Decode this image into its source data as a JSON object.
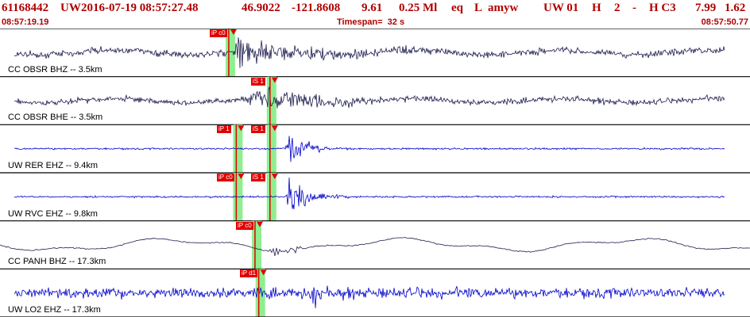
{
  "header": {
    "event_id": "61168442",
    "network": "UW",
    "origin_time": "2016-07-19 08:57:27.48",
    "latitude": "46.9022",
    "longitude": "-121.8608",
    "depth": "9.61",
    "magnitude": "0.25 Ml",
    "event_type": "eq",
    "flag": "L",
    "author": "amyw",
    "source": "UW 01",
    "quality": "H",
    "version": "2",
    "dash": "-",
    "extra": "H C3",
    "rms": "7.99",
    "gap": "1.62",
    "start_time": "08:57:19.19",
    "timespan": "Timespan=  32 s",
    "end_time": "08:57:50.77"
  },
  "traces": [
    {
      "label": "CC OBSR BHZ -- 3.5km",
      "color": "#1c1c4e",
      "amplitude": 0.6,
      "noise": 0.12,
      "onset": 0.31,
      "wave": "broadband",
      "picks": [
        {
          "label": "iP c0",
          "pos": 0.305
        }
      ]
    },
    {
      "label": "CC OBSR BHE -- 3.5km",
      "color": "#1c1c4e",
      "amplitude": 0.55,
      "noise": 0.1,
      "onset": 0.33,
      "wave": "broadband",
      "picks": [
        {
          "label": "iS 1",
          "pos": 0.36
        }
      ]
    },
    {
      "label": "UW RER EHZ -- 9.4km",
      "color": "#0000c8",
      "amplitude": 0.8,
      "noise": 0.03,
      "onset": 0.38,
      "wave": "short",
      "picks": [
        {
          "label": "iP 1",
          "pos": 0.315
        },
        {
          "label": "iS 1",
          "pos": 0.36
        }
      ]
    },
    {
      "label": "UW RVC EHZ -- 9.8km",
      "color": "#0000c8",
      "amplitude": 0.8,
      "noise": 0.03,
      "onset": 0.38,
      "wave": "short",
      "picks": [
        {
          "label": "iP c0",
          "pos": 0.315
        },
        {
          "label": "iS 1",
          "pos": 0.36
        }
      ]
    },
    {
      "label": "CC PANH BHZ -- 17.3km",
      "color": "#1c1c4e",
      "amplitude": 0.35,
      "noise": 0.02,
      "onset": 0.36,
      "wave": "long",
      "picks": [
        {
          "label": "iP c0",
          "pos": 0.34
        }
      ]
    },
    {
      "label": "UW LO2 EHZ -- 17.3km",
      "color": "#0000c8",
      "amplitude": 0.7,
      "noise": 0.18,
      "onset": 0.41,
      "wave": "noisy",
      "picks": [
        {
          "label": "iP d1",
          "pos": 0.345
        }
      ]
    }
  ],
  "colors": {
    "pick": "#e00000",
    "window": "#90ee90",
    "header_text": "#b00000",
    "divider": "#000000"
  },
  "icons": {
    "pick_marker": "red-triangle-icon"
  }
}
